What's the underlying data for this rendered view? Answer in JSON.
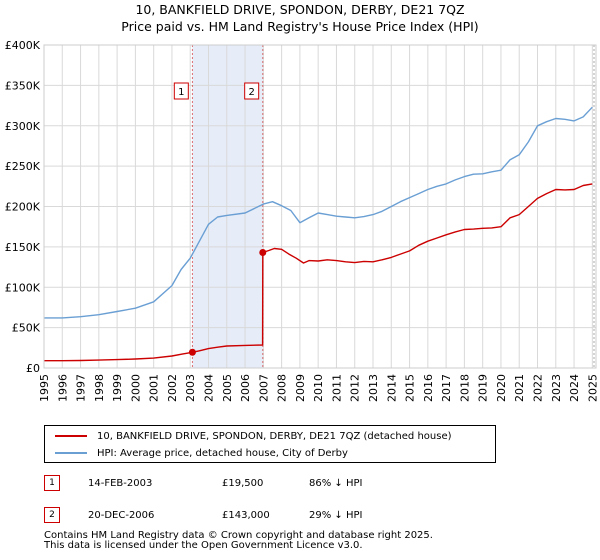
{
  "chart_data": {
    "type": "line",
    "title": "10, BANKFIELD DRIVE, SPONDON, DERBY, DE21 7QZ",
    "subtitle": "Price paid vs. HM Land Registry's House Price Index (HPI)",
    "xlim": [
      1995,
      2025.2
    ],
    "ylim": [
      0,
      400000
    ],
    "x_ticks": [
      1995,
      1996,
      1997,
      1998,
      1999,
      2000,
      2001,
      2002,
      2003,
      2004,
      2005,
      2006,
      2007,
      2008,
      2009,
      2010,
      2011,
      2012,
      2013,
      2014,
      2015,
      2016,
      2017,
      2018,
      2019,
      2020,
      2021,
      2022,
      2023,
      2024,
      2025
    ],
    "y_ticks": [
      {
        "value": 0,
        "label": "£0"
      },
      {
        "value": 50000,
        "label": "£50K"
      },
      {
        "value": 100000,
        "label": "£100K"
      },
      {
        "value": 150000,
        "label": "£150K"
      },
      {
        "value": 200000,
        "label": "£200K"
      },
      {
        "value": 250000,
        "label": "£250K"
      },
      {
        "value": 300000,
        "label": "£300K"
      },
      {
        "value": 350000,
        "label": "£350K"
      },
      {
        "value": 400000,
        "label": "£400K"
      }
    ],
    "shaded_region": [
      2003.12,
      2006.97
    ],
    "series": [
      {
        "name": "10, BANKFIELD DRIVE, SPONDON, DERBY, DE21 7QZ (detached house)",
        "color": "#cc0000",
        "x": [
          1995,
          1996,
          1997,
          1998,
          1999,
          2000,
          2001,
          2002,
          2002.6,
          2003.12,
          2003.5,
          2004,
          2004.5,
          2005,
          2006,
          2006.96,
          2006.97,
          2007.3,
          2007.6,
          2008,
          2008.4,
          2008.8,
          2009.2,
          2009.5,
          2010,
          2010.5,
          2011,
          2011.5,
          2012,
          2012.5,
          2013,
          2013.5,
          2014,
          2014.5,
          2015,
          2015.5,
          2016,
          2016.5,
          2017,
          2017.5,
          2018,
          2018.5,
          2019,
          2019.5,
          2020,
          2020.5,
          2021,
          2021.5,
          2022,
          2022.5,
          2023,
          2023.5,
          2024,
          2024.5,
          2025
        ],
        "values": [
          9000,
          9000,
          9300,
          9800,
          10400,
          11200,
          12300,
          14800,
          17400,
          19500,
          21300,
          24000,
          25800,
          27300,
          28000,
          28500,
          143000,
          145500,
          148000,
          147000,
          141000,
          136000,
          130000,
          133000,
          132500,
          134000,
          133000,
          131500,
          130500,
          132000,
          131500,
          134000,
          137000,
          141000,
          145000,
          152000,
          157000,
          161000,
          165000,
          168500,
          171500,
          172000,
          173000,
          173500,
          175000,
          186000,
          190000,
          200000,
          210000,
          216000,
          221000,
          220500,
          221000,
          226000,
          228000
        ]
      },
      {
        "name": "HPI: Average price, detached house, City of Derby",
        "color": "#6a9fd4",
        "x": [
          1995,
          1996,
          1997,
          1998,
          1999,
          2000,
          2001,
          2002,
          2002.5,
          2003,
          2003.5,
          2004,
          2004.5,
          2005,
          2006,
          2007,
          2007.5,
          2008,
          2008.5,
          2009,
          2009.5,
          2010,
          2010.5,
          2011,
          2011.5,
          2012,
          2012.5,
          2013,
          2013.5,
          2014,
          2014.5,
          2015,
          2015.5,
          2016,
          2016.5,
          2017,
          2017.5,
          2018,
          2018.5,
          2019,
          2019.5,
          2020,
          2020.5,
          2021,
          2021.5,
          2022,
          2022.5,
          2023,
          2023.5,
          2024,
          2024.5,
          2025
        ],
        "values": [
          62000,
          62000,
          63500,
          66000,
          70000,
          74000,
          82000,
          102000,
          122000,
          136000,
          157000,
          178000,
          187000,
          189000,
          192000,
          203000,
          206000,
          201000,
          195000,
          180000,
          186000,
          192000,
          190000,
          188000,
          187000,
          186000,
          187500,
          190000,
          194000,
          200000,
          206000,
          211000,
          216000,
          221000,
          225000,
          228000,
          233000,
          237000,
          240000,
          240500,
          243000,
          245000,
          258000,
          264000,
          280000,
          300000,
          305000,
          309000,
          308000,
          306000,
          311000,
          323000
        ]
      }
    ],
    "sales": [
      {
        "label": "1",
        "x": 2003.12,
        "value": 19500
      },
      {
        "label": "2",
        "x": 2006.97,
        "value": 143000
      }
    ],
    "marker_labels": [
      {
        "label": "1",
        "x": 2002.95
      },
      {
        "label": "2",
        "x": 2006.8
      }
    ]
  },
  "legend": {
    "property_label": "10, BANKFIELD DRIVE, SPONDON, DERBY, DE21 7QZ (detached house)",
    "hpi_label": "HPI: Average price, detached house, City of Derby",
    "property_color": "#cc0000",
    "hpi_color": "#6a9fd4"
  },
  "sales_table": [
    {
      "num": "1",
      "date": "14-FEB-2003",
      "price": "£19,500",
      "hpi": "86% ↓ HPI"
    },
    {
      "num": "2",
      "date": "20-DEC-2006",
      "price": "£143,000",
      "hpi": "29% ↓ HPI"
    }
  ],
  "footer": {
    "line1": "Contains HM Land Registry data © Crown copyright and database right 2025.",
    "line2": "This data is licensed under the Open Government Licence v3.0."
  }
}
